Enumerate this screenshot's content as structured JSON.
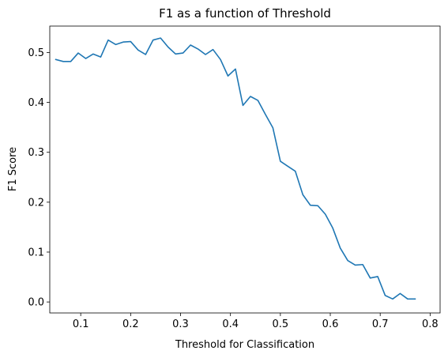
{
  "chart_data": {
    "type": "line",
    "title": "F1 as a function of Threshold",
    "xlabel": "Threshold for Classification",
    "ylabel": "F1 Score",
    "xlim": [
      0.038,
      0.82
    ],
    "ylim": [
      -0.022,
      0.553
    ],
    "xticks": [
      0.1,
      0.2,
      0.3,
      0.4,
      0.5,
      0.6,
      0.7,
      0.8
    ],
    "xtick_labels": [
      "0.1",
      "0.2",
      "0.3",
      "0.4",
      "0.5",
      "0.6",
      "0.7",
      "0.8"
    ],
    "yticks": [
      0.0,
      0.1,
      0.2,
      0.3,
      0.4,
      0.5
    ],
    "ytick_labels": [
      "0.0",
      "0.1",
      "0.2",
      "0.3",
      "0.4",
      "0.5"
    ],
    "grid": false,
    "series_color": "#1f77b4",
    "series": [
      {
        "x": [
          0.05,
          0.065,
          0.08,
          0.095,
          0.11,
          0.125,
          0.14,
          0.155,
          0.17,
          0.185,
          0.2,
          0.215,
          0.23,
          0.245,
          0.26,
          0.275,
          0.29,
          0.305,
          0.32,
          0.335,
          0.35,
          0.365,
          0.38,
          0.395,
          0.41,
          0.425,
          0.44,
          0.455,
          0.47,
          0.485,
          0.5,
          0.515,
          0.53,
          0.545,
          0.56,
          0.575,
          0.59,
          0.605,
          0.62,
          0.635,
          0.65,
          0.665,
          0.68,
          0.695,
          0.71,
          0.725,
          0.74,
          0.755,
          0.77
        ],
        "values": [
          0.486,
          0.482,
          0.482,
          0.499,
          0.488,
          0.497,
          0.491,
          0.525,
          0.516,
          0.521,
          0.522,
          0.505,
          0.496,
          0.525,
          0.529,
          0.511,
          0.497,
          0.499,
          0.515,
          0.507,
          0.496,
          0.506,
          0.486,
          0.453,
          0.467,
          0.394,
          0.412,
          0.404,
          0.376,
          0.349,
          0.282,
          0.272,
          0.262,
          0.215,
          0.194,
          0.193,
          0.176,
          0.148,
          0.108,
          0.083,
          0.074,
          0.075,
          0.048,
          0.051,
          0.013,
          0.006,
          0.017,
          0.006,
          0.006
        ]
      }
    ]
  }
}
